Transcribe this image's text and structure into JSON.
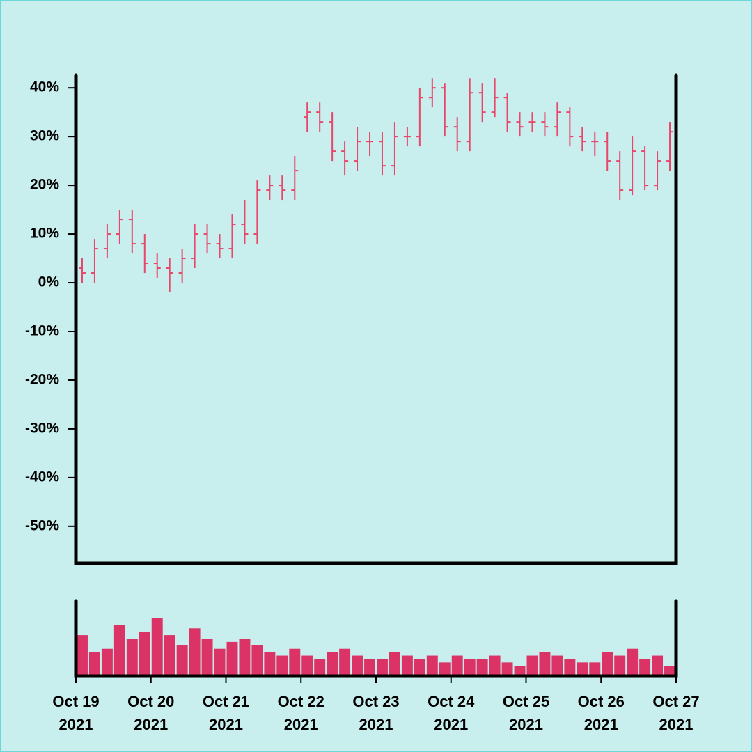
{
  "chart_data": {
    "type": "ohlc",
    "x": [
      "2021-10-19T00:00",
      "2021-10-19T04:00",
      "2021-10-19T08:00",
      "2021-10-19T12:00",
      "2021-10-19T16:00",
      "2021-10-19T20:00",
      "2021-10-20T00:00",
      "2021-10-20T04:00",
      "2021-10-20T08:00",
      "2021-10-20T12:00",
      "2021-10-20T16:00",
      "2021-10-20T20:00",
      "2021-10-21T00:00",
      "2021-10-21T04:00",
      "2021-10-21T08:00",
      "2021-10-21T12:00",
      "2021-10-21T16:00",
      "2021-10-21T20:00",
      "2021-10-22T00:00",
      "2021-10-22T04:00",
      "2021-10-22T08:00",
      "2021-10-22T12:00",
      "2021-10-22T16:00",
      "2021-10-22T20:00",
      "2021-10-23T00:00",
      "2021-10-23T04:00",
      "2021-10-23T08:00",
      "2021-10-23T12:00",
      "2021-10-23T16:00",
      "2021-10-23T20:00",
      "2021-10-24T00:00",
      "2021-10-24T04:00",
      "2021-10-24T08:00",
      "2021-10-24T12:00",
      "2021-10-24T16:00",
      "2021-10-24T20:00",
      "2021-10-25T00:00",
      "2021-10-25T04:00",
      "2021-10-25T08:00",
      "2021-10-25T12:00",
      "2021-10-25T16:00",
      "2021-10-25T20:00",
      "2021-10-26T00:00",
      "2021-10-26T04:00",
      "2021-10-26T08:00",
      "2021-10-26T12:00",
      "2021-10-26T16:00",
      "2021-10-26T20:00"
    ],
    "open": [
      3,
      2,
      7,
      10,
      13,
      8,
      4,
      3,
      2,
      5,
      10,
      8,
      7,
      12,
      10,
      19,
      20,
      19,
      34,
      35,
      33,
      27,
      25,
      29,
      29,
      24,
      30,
      30,
      38,
      40,
      32,
      29,
      39,
      35,
      38,
      33,
      33,
      33,
      32,
      35,
      30,
      29,
      29,
      25,
      19,
      27,
      20,
      25
    ],
    "high": [
      5,
      9,
      12,
      15,
      15,
      10,
      6,
      5,
      7,
      12,
      12,
      10,
      14,
      17,
      21,
      22,
      22,
      26,
      37,
      37,
      35,
      29,
      32,
      31,
      31,
      33,
      32,
      40,
      42,
      41,
      34,
      42,
      41,
      42,
      39,
      35,
      35,
      35,
      37,
      36,
      32,
      31,
      31,
      27,
      30,
      28,
      27,
      33
    ],
    "low": [
      0,
      0,
      5,
      8,
      6,
      2,
      1,
      -2,
      0,
      3,
      6,
      5,
      5,
      8,
      8,
      17,
      17,
      17,
      31,
      31,
      25,
      22,
      23,
      26,
      22,
      22,
      28,
      28,
      36,
      30,
      27,
      27,
      33,
      34,
      31,
      30,
      31,
      30,
      30,
      28,
      27,
      26,
      23,
      17,
      18,
      19,
      19,
      23
    ],
    "close": [
      2,
      7,
      10,
      13,
      8,
      4,
      3,
      2,
      5,
      10,
      8,
      7,
      12,
      10,
      19,
      20,
      19,
      23,
      35,
      33,
      27,
      25,
      29,
      29,
      24,
      30,
      30,
      38,
      40,
      32,
      29,
      39,
      35,
      38,
      33,
      32,
      33,
      32,
      35,
      30,
      29,
      29,
      25,
      19,
      27,
      20,
      25,
      31
    ],
    "color": "#e8466a",
    "volume": [
      60,
      35,
      40,
      75,
      55,
      65,
      85,
      60,
      45,
      70,
      55,
      40,
      50,
      55,
      45,
      35,
      30,
      40,
      30,
      25,
      35,
      40,
      30,
      25,
      25,
      35,
      30,
      25,
      30,
      20,
      30,
      25,
      25,
      30,
      20,
      15,
      30,
      35,
      30,
      25,
      20,
      20,
      35,
      30,
      40,
      25,
      30,
      15
    ],
    "volume_color": "#dc3366",
    "volume_ylim": [
      0,
      110
    ],
    "xlim": [
      "2021-10-19T00:00",
      "2021-10-27T00:00"
    ],
    "xticks": [
      {
        "value": "2021-10-19T00:00",
        "label": "Oct 19 2021"
      },
      {
        "value": "2021-10-20T00:00",
        "label": "Oct 20 2021"
      },
      {
        "value": "2021-10-21T00:00",
        "label": "Oct 21 2021"
      },
      {
        "value": "2021-10-22T00:00",
        "label": "Oct 22 2021"
      },
      {
        "value": "2021-10-23T00:00",
        "label": "Oct 23 2021"
      },
      {
        "value": "2021-10-24T00:00",
        "label": "Oct 24 2021"
      },
      {
        "value": "2021-10-25T00:00",
        "label": "Oct 25 2021"
      },
      {
        "value": "2021-10-26T00:00",
        "label": "Oct 26 2021"
      },
      {
        "value": "2021-10-27T00:00",
        "label": "Oct 27 2021"
      }
    ],
    "ylim": [
      -57.6,
      42.6
    ],
    "yticks": [
      {
        "value": -50,
        "label": "-50%"
      },
      {
        "value": -40,
        "label": "-40%"
      },
      {
        "value": -30,
        "label": "-30%"
      },
      {
        "value": -20,
        "label": "-20%"
      },
      {
        "value": -10,
        "label": "-10%"
      },
      {
        "value": 0,
        "label": "0%"
      },
      {
        "value": 10,
        "label": "10%"
      },
      {
        "value": 20,
        "label": "20%"
      },
      {
        "value": 30,
        "label": "30%"
      },
      {
        "value": 40,
        "label": "40%"
      }
    ]
  }
}
